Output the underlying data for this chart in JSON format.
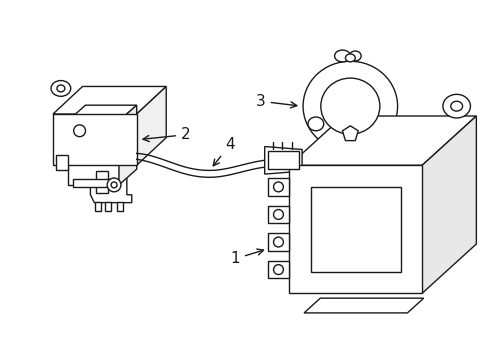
{
  "background_color": "#ffffff",
  "line_color": "#1a1a1a",
  "line_width": 1.0,
  "figsize": [
    4.89,
    3.6
  ],
  "dpi": 100
}
